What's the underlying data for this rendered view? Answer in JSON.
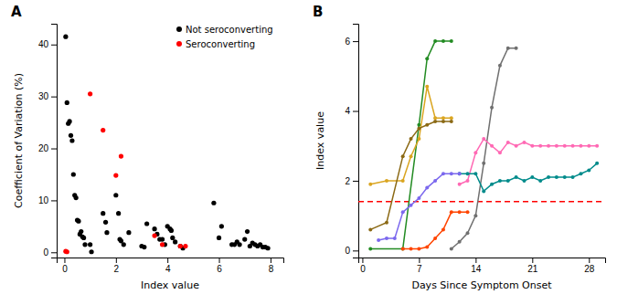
{
  "chart_data": [
    {
      "type": "scatter",
      "title": "A",
      "xlabel": "Index value",
      "ylabel": "Coefficient of Variation (%)",
      "xlim": [
        -0.3,
        8.5
      ],
      "ylim": [
        -1,
        44
      ],
      "xticks": [
        0,
        2,
        4,
        6,
        8
      ],
      "yticks": [
        0,
        10,
        20,
        30,
        40
      ],
      "legend": "upper right",
      "marker": "circle",
      "series": [
        {
          "name": "Not seroconverting",
          "color": "black",
          "x": [
            0.05,
            0.1,
            0.15,
            0.2,
            0.25,
            0.3,
            0.35,
            0.4,
            0.45,
            0.5,
            0.55,
            0.6,
            0.65,
            0.7,
            0.75,
            0.8,
            1.0,
            1.05,
            1.5,
            1.6,
            1.65,
            2.0,
            2.1,
            2.15,
            2.2,
            2.3,
            2.5,
            3.0,
            3.1,
            3.2,
            3.5,
            3.6,
            3.7,
            3.8,
            3.9,
            4.0,
            4.1,
            4.15,
            4.2,
            4.3,
            4.5,
            4.6,
            5.8,
            6.0,
            6.1,
            6.5,
            6.6,
            6.7,
            6.8,
            7.0,
            7.1,
            7.2,
            7.3,
            7.4,
            7.5,
            7.6,
            7.7,
            7.8,
            7.9
          ],
          "values": [
            41.5,
            28.8,
            24.8,
            25.2,
            22.5,
            21.5,
            15.0,
            11.0,
            10.5,
            6.2,
            6.0,
            3.5,
            4.0,
            3.0,
            2.8,
            1.5,
            1.5,
            0.1,
            7.5,
            5.8,
            3.8,
            11.0,
            7.5,
            2.5,
            2.2,
            1.5,
            3.8,
            1.2,
            1.0,
            5.5,
            4.5,
            3.5,
            2.5,
            2.5,
            1.5,
            5.0,
            4.5,
            4.2,
            2.8,
            2.0,
            1.2,
            0.8,
            9.5,
            2.8,
            5.0,
            1.5,
            1.5,
            2.0,
            1.5,
            2.5,
            4.0,
            1.2,
            1.8,
            1.5,
            1.2,
            1.5,
            1.0,
            1.0,
            0.8
          ]
        },
        {
          "name": "Seroconverting",
          "color": "red",
          "x": [
            0.05,
            0.1,
            1.0,
            1.5,
            2.2,
            2.0,
            3.5,
            3.8,
            4.5,
            4.7
          ],
          "values": [
            0.2,
            0.1,
            30.5,
            23.5,
            18.5,
            14.8,
            3.2,
            1.5,
            1.2,
            1.2
          ]
        }
      ]
    },
    {
      "type": "line",
      "title": "B",
      "xlabel": "Days Since Symptom Onset",
      "ylabel": "Index value",
      "xlim": [
        -0.5,
        30
      ],
      "ylim": [
        -0.2,
        6.5
      ],
      "xticks": [
        0,
        7,
        14,
        21,
        28
      ],
      "yticks": [
        0,
        2,
        4,
        6
      ],
      "marker": "circle",
      "series": [
        {
          "color": "#228B22",
          "x": [
            1,
            5,
            7,
            8,
            9,
            10,
            11
          ],
          "values": [
            0.05,
            0.05,
            3.6,
            5.5,
            6.0,
            6.0,
            6.0
          ]
        },
        {
          "color": "#DAA520",
          "x": [
            1,
            3,
            5,
            6,
            7,
            8,
            9,
            10,
            11
          ],
          "values": [
            1.9,
            2.0,
            2.0,
            2.7,
            3.2,
            4.7,
            3.8,
            3.8,
            3.8
          ]
        },
        {
          "color": "#8B6914",
          "x": [
            1,
            3,
            5,
            6,
            7,
            8,
            9,
            10,
            11
          ],
          "values": [
            0.6,
            0.8,
            2.7,
            3.2,
            3.5,
            3.6,
            3.7,
            3.7,
            3.7
          ]
        },
        {
          "color": "#707070",
          "x": [
            11,
            12,
            13,
            14,
            15,
            16,
            17,
            18,
            19
          ],
          "values": [
            0.05,
            0.25,
            0.5,
            1.0,
            2.5,
            4.1,
            5.3,
            5.8,
            5.8
          ]
        },
        {
          "color": "#FF69B4",
          "x": [
            12,
            13,
            14,
            15,
            16,
            17,
            18,
            19,
            20,
            21,
            22,
            23,
            24,
            25,
            26,
            27,
            28,
            29
          ],
          "values": [
            1.9,
            2.0,
            2.8,
            3.2,
            3.0,
            2.8,
            3.1,
            3.0,
            3.1,
            3.0,
            3.0,
            3.0,
            3.0,
            3.0,
            3.0,
            3.0,
            3.0,
            3.0
          ]
        },
        {
          "color": "#008B8B",
          "x": [
            12,
            13,
            14,
            15,
            16,
            17,
            18,
            19,
            20,
            21,
            22,
            23,
            24,
            25,
            26,
            27,
            28,
            29
          ],
          "values": [
            2.2,
            2.2,
            2.2,
            1.7,
            1.9,
            2.0,
            2.0,
            2.1,
            2.0,
            2.1,
            2.0,
            2.1,
            2.1,
            2.1,
            2.1,
            2.2,
            2.3,
            2.5
          ]
        },
        {
          "color": "#7B68EE",
          "x": [
            2,
            3,
            4,
            5,
            6,
            7,
            8,
            9,
            10,
            11,
            12
          ],
          "values": [
            0.3,
            0.35,
            0.35,
            1.1,
            1.3,
            1.5,
            1.8,
            2.0,
            2.2,
            2.2,
            2.2
          ]
        },
        {
          "color": "#FF4500",
          "x": [
            5,
            6,
            7,
            8,
            9,
            10,
            11,
            12,
            13
          ],
          "values": [
            0.05,
            0.05,
            0.05,
            0.1,
            0.35,
            0.6,
            1.1,
            1.1,
            1.1
          ]
        }
      ],
      "reference_lines": [
        {
          "value": 1.4,
          "color": "red",
          "line_style": "dashed"
        }
      ]
    }
  ]
}
